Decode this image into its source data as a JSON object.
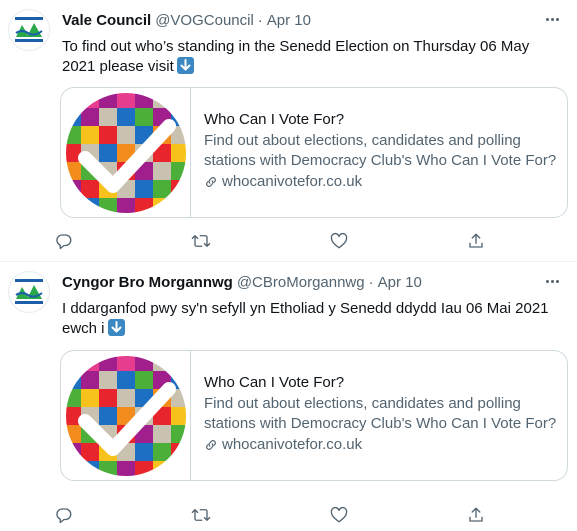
{
  "tweets": [
    {
      "display_name": "Vale Council",
      "handle": "@VOGCouncil",
      "separator": "·",
      "date": "Apr 10",
      "text": "To find out who’s standing in the Senedd Election on Thursday 06 May 2021 please visit",
      "emoji": "down-arrow-emoji",
      "card": {
        "title": "Who Can I Vote For?",
        "description": "Find out about elections, candidates and polling stations with Democracy Club's Who Can I Vote For?",
        "domain": "whocanivotefor.co.uk"
      }
    },
    {
      "display_name": "Cyngor Bro Morgannwg",
      "handle": "@CBroMorgannwg",
      "separator": "·",
      "date": "Apr 10",
      "text": "I ddarganfod pwy sy'n sefyll yn Etholiad y Senedd ddydd Iau 06 Mai 2021 ewch i",
      "emoji": "down-arrow-emoji",
      "card": {
        "title": "Who Can I Vote For?",
        "description": "Find out about elections, candidates and polling stations with Democracy Club's Who Can I Vote For?",
        "domain": "whocanivotefor.co.uk"
      }
    }
  ],
  "colors": {
    "text": "#0f1419",
    "secondary": "#536471",
    "border": "#cfd9de",
    "avatar_green": "#2aa84a",
    "avatar_blue": "#1c5fa8",
    "emoji_blue": "#3b88c3"
  },
  "icons": [
    "reply-icon",
    "retweet-icon",
    "like-icon",
    "share-icon",
    "link-icon",
    "more-icon"
  ]
}
